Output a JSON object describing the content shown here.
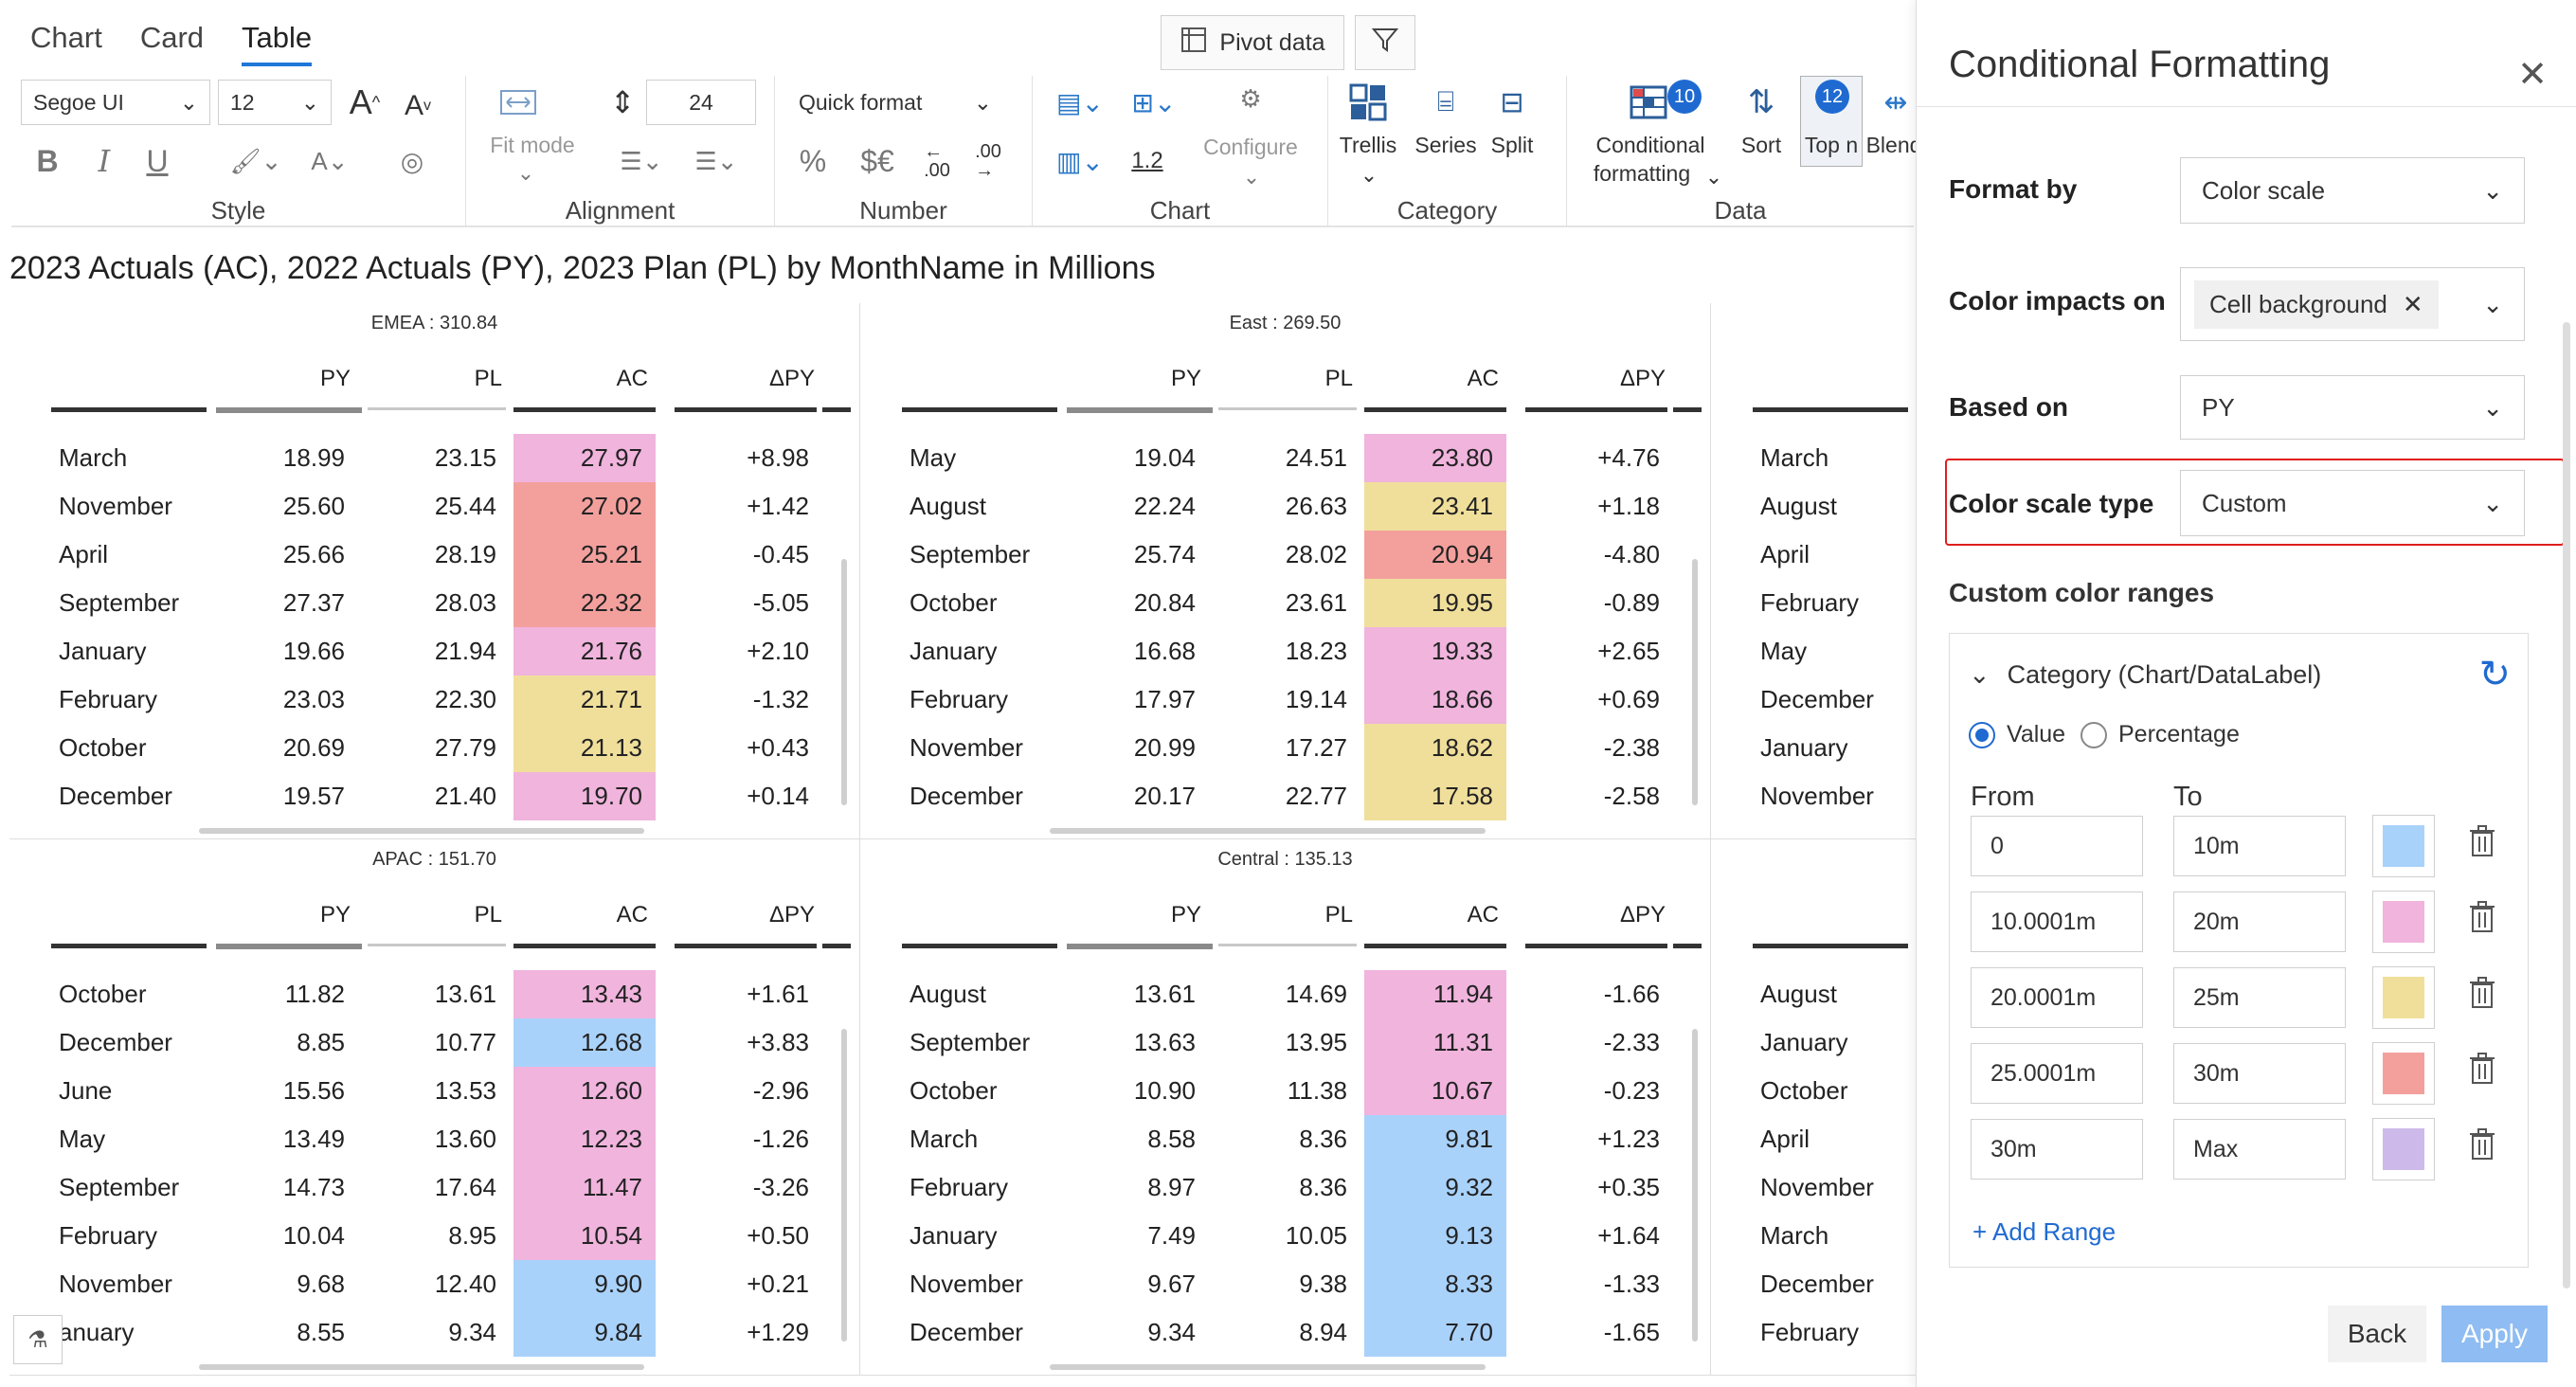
{
  "view_tabs": [
    "Chart",
    "Card",
    "Table"
  ],
  "active_tab": "Table",
  "toolbar": {
    "pivot_label": "Pivot data",
    "font_family": "Segoe UI",
    "font_size": "12",
    "line_height": "24",
    "quick_format": "Quick format",
    "fit_mode": "Fit mode",
    "configure": "Configure",
    "trellis": "Trellis",
    "series": "Series",
    "split": "Split",
    "conditional_formatting_line1": "Conditional",
    "conditional_formatting_line2": "formatting",
    "cf_badge": "10",
    "sort": "Sort",
    "topn": "Top n",
    "topn_badge": "12",
    "blend": "Blend",
    "decimal_label": "1.2",
    "currency_label": "$€",
    "percent_label": "%",
    "groups": [
      "Style",
      "Alignment",
      "Number",
      "Chart",
      "Category",
      "Data"
    ]
  },
  "chart_title": "2023 Actuals (AC), 2022 Actuals (PY), 2023 Plan (PL) by MonthName in Millions",
  "columns": [
    "PY",
    "PL",
    "AC",
    "ΔPY"
  ],
  "colors": {
    "blue": "#a9d2fb",
    "pink": "#f0b4dd",
    "yellow": "#f0df9b",
    "red": "#f3a09d",
    "purple": "#cdb9ea"
  },
  "panels": [
    {
      "title": "EMEA :  310.84",
      "rows": [
        {
          "name": "March",
          "py": "18.99",
          "pl": "23.15",
          "ac": "27.97",
          "dpy": "+8.98",
          "color": "pink"
        },
        {
          "name": "November",
          "py": "25.60",
          "pl": "25.44",
          "ac": "27.02",
          "dpy": "+1.42",
          "color": "red"
        },
        {
          "name": "April",
          "py": "25.66",
          "pl": "28.19",
          "ac": "25.21",
          "dpy": "-0.45",
          "color": "red"
        },
        {
          "name": "September",
          "py": "27.37",
          "pl": "28.03",
          "ac": "22.32",
          "dpy": "-5.05",
          "color": "red"
        },
        {
          "name": "January",
          "py": "19.66",
          "pl": "21.94",
          "ac": "21.76",
          "dpy": "+2.10",
          "color": "pink"
        },
        {
          "name": "February",
          "py": "23.03",
          "pl": "22.30",
          "ac": "21.71",
          "dpy": "-1.32",
          "color": "yellow"
        },
        {
          "name": "October",
          "py": "20.69",
          "pl": "27.79",
          "ac": "21.13",
          "dpy": "+0.43",
          "color": "yellow"
        },
        {
          "name": "December",
          "py": "19.57",
          "pl": "21.40",
          "ac": "19.70",
          "dpy": "+0.14",
          "color": "pink"
        }
      ]
    },
    {
      "title": "East :  269.50",
      "rows": [
        {
          "name": "May",
          "py": "19.04",
          "pl": "24.51",
          "ac": "23.80",
          "dpy": "+4.76",
          "color": "pink"
        },
        {
          "name": "August",
          "py": "22.24",
          "pl": "26.63",
          "ac": "23.41",
          "dpy": "+1.18",
          "color": "yellow"
        },
        {
          "name": "September",
          "py": "25.74",
          "pl": "28.02",
          "ac": "20.94",
          "dpy": "-4.80",
          "color": "red"
        },
        {
          "name": "October",
          "py": "20.84",
          "pl": "23.61",
          "ac": "19.95",
          "dpy": "-0.89",
          "color": "yellow"
        },
        {
          "name": "January",
          "py": "16.68",
          "pl": "18.23",
          "ac": "19.33",
          "dpy": "+2.65",
          "color": "pink"
        },
        {
          "name": "February",
          "py": "17.97",
          "pl": "19.14",
          "ac": "18.66",
          "dpy": "+0.69",
          "color": "pink"
        },
        {
          "name": "November",
          "py": "20.99",
          "pl": "17.27",
          "ac": "18.62",
          "dpy": "-2.38",
          "color": "yellow"
        },
        {
          "name": "December",
          "py": "20.17",
          "pl": "22.77",
          "ac": "17.58",
          "dpy": "-2.58",
          "color": "yellow"
        }
      ]
    },
    {
      "title": "APAC :  151.70",
      "rows": [
        {
          "name": "October",
          "py": "11.82",
          "pl": "13.61",
          "ac": "13.43",
          "dpy": "+1.61",
          "color": "pink"
        },
        {
          "name": "December",
          "py": "8.85",
          "pl": "10.77",
          "ac": "12.68",
          "dpy": "+3.83",
          "color": "blue"
        },
        {
          "name": "June",
          "py": "15.56",
          "pl": "13.53",
          "ac": "12.60",
          "dpy": "-2.96",
          "color": "pink"
        },
        {
          "name": "May",
          "py": "13.49",
          "pl": "13.60",
          "ac": "12.23",
          "dpy": "-1.26",
          "color": "pink"
        },
        {
          "name": "September",
          "py": "14.73",
          "pl": "17.64",
          "ac": "11.47",
          "dpy": "-3.26",
          "color": "pink"
        },
        {
          "name": "February",
          "py": "10.04",
          "pl": "8.95",
          "ac": "10.54",
          "dpy": "+0.50",
          "color": "pink"
        },
        {
          "name": "November",
          "py": "9.68",
          "pl": "12.40",
          "ac": "9.90",
          "dpy": "+0.21",
          "color": "blue"
        },
        {
          "name": "anuary",
          "py": "8.55",
          "pl": "9.34",
          "ac": "9.84",
          "dpy": "+1.29",
          "color": "blue"
        }
      ]
    },
    {
      "title": "Central :  135.13",
      "rows": [
        {
          "name": "August",
          "py": "13.61",
          "pl": "14.69",
          "ac": "11.94",
          "dpy": "-1.66",
          "color": "pink"
        },
        {
          "name": "September",
          "py": "13.63",
          "pl": "13.95",
          "ac": "11.31",
          "dpy": "-2.33",
          "color": "pink"
        },
        {
          "name": "October",
          "py": "10.90",
          "pl": "11.38",
          "ac": "10.67",
          "dpy": "-0.23",
          "color": "pink"
        },
        {
          "name": "March",
          "py": "8.58",
          "pl": "8.36",
          "ac": "9.81",
          "dpy": "+1.23",
          "color": "blue"
        },
        {
          "name": "February",
          "py": "8.97",
          "pl": "8.36",
          "ac": "9.32",
          "dpy": "+0.35",
          "color": "blue"
        },
        {
          "name": "January",
          "py": "7.49",
          "pl": "10.05",
          "ac": "9.13",
          "dpy": "+1.64",
          "color": "blue"
        },
        {
          "name": "November",
          "py": "9.67",
          "pl": "9.38",
          "ac": "8.33",
          "dpy": "-1.33",
          "color": "blue"
        },
        {
          "name": "December",
          "py": "9.34",
          "pl": "8.94",
          "ac": "7.70",
          "dpy": "-1.65",
          "color": "blue"
        }
      ]
    }
  ],
  "partial_panels": [
    {
      "rows": [
        "March",
        "August",
        "April",
        "February",
        "May",
        "December",
        "January",
        "November"
      ]
    },
    {
      "rows": [
        "August",
        "January",
        "October",
        "April",
        "November",
        "March",
        "December",
        "February"
      ]
    }
  ],
  "side_panel": {
    "title": "Conditional Formatting",
    "format_by_label": "Format by",
    "format_by_value": "Color scale",
    "color_impacts_label": "Color impacts on",
    "color_impacts_chip": "Cell background",
    "based_on_label": "Based on",
    "based_on_value": "PY",
    "scale_type_label": "Color scale type",
    "scale_type_value": "Custom",
    "custom_ranges_label": "Custom color ranges",
    "category_label": "Category (Chart/DataLabel)",
    "radio_value": "Value",
    "radio_percentage": "Percentage",
    "from_label": "From",
    "to_label": "To",
    "ranges": [
      {
        "from": "0",
        "to": "10m",
        "color": "#a9d2fb"
      },
      {
        "from": "10.0001m",
        "to": "20m",
        "color": "#f0b4dd"
      },
      {
        "from": "20.0001m",
        "to": "25m",
        "color": "#f0df9b"
      },
      {
        "from": "25.0001m",
        "to": "30m",
        "color": "#f3a09d"
      },
      {
        "from": "30m",
        "to": "Max",
        "color": "#cdb9ea"
      }
    ],
    "add_range": "+ Add Range",
    "back": "Back",
    "apply": "Apply"
  }
}
